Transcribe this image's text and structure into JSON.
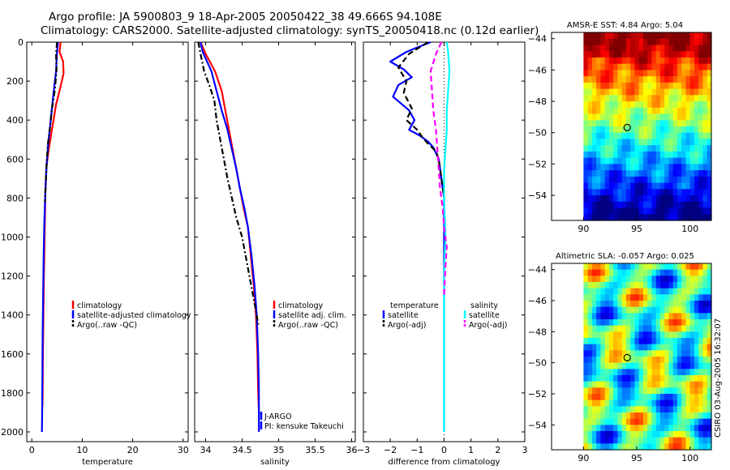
{
  "header": {
    "line1": "Argo profile: JA 5900803_9 18-Apr-2005 20050422_38 49.666S 94.108E",
    "line2": "Climatology: CARS2000. Satellite-adjusted climatology: synTS_20050418.nc (0.12d earlier)"
  },
  "stamp": "CSIRO 03-Aug-2005 16:32:07",
  "colors": {
    "red": "#ff0000",
    "blue": "#0000ff",
    "black": "#000000",
    "cyan": "#00ffff",
    "magenta": "#ff00ff",
    "grey": "#555555"
  },
  "chart_data": [
    {
      "type": "line",
      "id": "temperature",
      "xlabel": "temperature",
      "xlim": [
        -1,
        31
      ],
      "ylim": [
        2050,
        0
      ],
      "y_reversed": true,
      "xticks": [
        0,
        10,
        20,
        30
      ],
      "yticks": [
        0,
        200,
        400,
        600,
        800,
        1000,
        1200,
        1400,
        1600,
        1800,
        2000
      ],
      "series": [
        {
          "name": "climatology",
          "color": "red",
          "style": "solid",
          "x": [
            5.7,
            5.5,
            6.2,
            6.3,
            5.6,
            4.8,
            4.3,
            3.8,
            3.3,
            2.9,
            2.7,
            2.6,
            2.5,
            2.4,
            2.3,
            2.2,
            2.15,
            2.1
          ],
          "y": [
            0,
            50,
            100,
            160,
            240,
            320,
            400,
            480,
            560,
            640,
            760,
            900,
            1050,
            1200,
            1400,
            1600,
            1800,
            1870
          ]
        },
        {
          "name": "satellite-adjusted climatology",
          "color": "blue",
          "style": "solid",
          "x": [
            5.2,
            5.0,
            4.8,
            4.3,
            3.9,
            3.5,
            3.2,
            2.9,
            2.7,
            2.5,
            2.35,
            2.25,
            2.15,
            2.1,
            2.05,
            2.0
          ],
          "y": [
            0,
            50,
            150,
            260,
            360,
            460,
            540,
            640,
            760,
            900,
            1100,
            1300,
            1500,
            1700,
            1900,
            2000
          ]
        },
        {
          "name": "Argo(..raw -QC)",
          "color": "black",
          "style": "dashdot",
          "x": [
            5.0,
            4.8,
            4.9,
            4.6,
            4.0,
            3.6,
            3.2,
            2.9,
            2.7,
            2.6
          ],
          "y": [
            0,
            60,
            140,
            240,
            340,
            440,
            520,
            640,
            760,
            820
          ]
        }
      ],
      "legend": [
        "climatology",
        "satellite-adjusted climatology",
        "Argo(..raw -QC)"
      ]
    },
    {
      "type": "line",
      "id": "salinity",
      "xlabel": "salinity",
      "xlim": [
        33.85,
        36.05
      ],
      "ylim": [
        2050,
        0
      ],
      "y_reversed": true,
      "xticks": [
        34,
        34.5,
        35,
        35.5,
        36
      ],
      "yticks": [
        0,
        200,
        400,
        600,
        800,
        1000,
        1200,
        1400,
        1600,
        1800,
        2000
      ],
      "series": [
        {
          "name": "climatology",
          "color": "red",
          "style": "solid",
          "x": [
            33.93,
            34.0,
            34.13,
            34.22,
            34.27,
            34.32,
            34.37,
            34.42,
            34.47,
            34.52,
            34.58,
            34.62,
            34.66,
            34.69,
            34.71,
            34.72,
            34.73
          ],
          "y": [
            0,
            60,
            150,
            250,
            350,
            450,
            550,
            650,
            750,
            850,
            950,
            1100,
            1250,
            1400,
            1600,
            1800,
            1900
          ]
        },
        {
          "name": "satellite adj. clim.",
          "color": "blue",
          "style": "solid",
          "x": [
            33.93,
            33.96,
            34.02,
            34.08,
            34.15,
            34.22,
            34.3,
            34.36,
            34.42,
            34.47,
            34.53,
            34.58,
            34.63,
            34.67,
            34.7,
            34.72,
            34.73,
            34.73
          ],
          "y": [
            0,
            50,
            100,
            150,
            250,
            350,
            450,
            550,
            650,
            750,
            850,
            950,
            1100,
            1250,
            1400,
            1600,
            1800,
            2000
          ]
        },
        {
          "name": "Argo(..raw -QC)",
          "color": "black",
          "style": "dashdot",
          "x": [
            33.9,
            33.93,
            33.98,
            34.05,
            34.12,
            34.15,
            34.2,
            34.25,
            34.3,
            34.36,
            34.42,
            34.5,
            34.55,
            34.6,
            34.65,
            34.7,
            34.72
          ],
          "y": [
            0,
            60,
            150,
            220,
            300,
            400,
            500,
            600,
            700,
            800,
            900,
            1000,
            1100,
            1200,
            1300,
            1400,
            1450
          ]
        }
      ],
      "legend": [
        "climatology",
        "satellite adj. clim.",
        "Argo(..raw -QC)"
      ],
      "annotation": [
        "J-ARGO",
        "PI: kensuke Takeuchi"
      ]
    },
    {
      "type": "line",
      "id": "difference",
      "xlabel": "difference from climatology",
      "xlim": [
        -3,
        3
      ],
      "ylim": [
        2050,
        0
      ],
      "y_reversed": true,
      "xticks": [
        -3,
        -2,
        -1,
        0,
        1,
        2,
        3
      ],
      "yticks": [
        0,
        200,
        400,
        600,
        800,
        1000,
        1200,
        1400,
        1600,
        1800,
        2000
      ],
      "zero_line": "dotted",
      "series": [
        {
          "name": "temperature satellite",
          "color": "blue",
          "style": "solid",
          "x": [
            -0.5,
            -1.4,
            -2.0,
            -1.5,
            -1.2,
            -1.7,
            -1.9,
            -1.3,
            -1.1,
            -1.3,
            -0.9,
            -0.6,
            -0.4,
            -0.2,
            -0.1,
            0.0,
            0.0,
            0.0,
            0.0,
            0.0
          ],
          "y": [
            0,
            50,
            100,
            140,
            180,
            220,
            280,
            350,
            400,
            450,
            480,
            510,
            540,
            600,
            700,
            800,
            900,
            1000,
            1500,
            2000
          ]
        },
        {
          "name": "temperature Argo(-adj)",
          "color": "black",
          "style": "dashed",
          "x": [
            -0.6,
            -1.3,
            -1.7,
            -1.4,
            -1.5,
            -1.2,
            -1.4,
            -1.0,
            -0.8,
            -0.6,
            -0.3,
            -0.2,
            -0.1,
            0.0
          ],
          "y": [
            0,
            60,
            130,
            200,
            260,
            340,
            400,
            450,
            490,
            520,
            560,
            600,
            700,
            800
          ]
        },
        {
          "name": "salinity satellite",
          "color": "cyan",
          "style": "solid",
          "x": [
            0.1,
            0.15,
            0.2,
            0.15,
            0.1,
            0.1,
            0.05,
            0.0,
            0.0,
            0.05,
            0.0,
            0.0,
            0.0
          ],
          "y": [
            0,
            50,
            150,
            250,
            350,
            450,
            550,
            650,
            800,
            1000,
            1200,
            1600,
            2000
          ]
        },
        {
          "name": "salinity Argo(-adj)",
          "color": "magenta",
          "style": "dashed",
          "x": [
            -0.1,
            -0.3,
            -0.5,
            -0.45,
            -0.4,
            -0.3,
            -0.25,
            -0.2,
            -0.15,
            -0.05,
            0.0,
            0.1,
            0.05,
            0.0
          ],
          "y": [
            0,
            60,
            150,
            250,
            350,
            450,
            550,
            650,
            750,
            850,
            950,
            1050,
            1150,
            1300
          ]
        }
      ],
      "legend_left": {
        "heading": "temperature",
        "items": [
          "satellite",
          "Argo(-adj)"
        ]
      },
      "legend_right": {
        "heading": "salinity",
        "items": [
          "satellite",
          "Argo(-adj)"
        ]
      }
    },
    {
      "type": "heatmap",
      "id": "sst_map",
      "title": "AMSR-E SST: 4.84 Argo: 5.04",
      "xlim": [
        87,
        102
      ],
      "ylim": [
        -55.6,
        -43.6
      ],
      "xticks": [
        90,
        95,
        100
      ],
      "yticks": [
        -44,
        -46,
        -48,
        -50,
        -52,
        -54
      ],
      "data_xlim": [
        90,
        102
      ],
      "marker": {
        "x": 94.1,
        "y": -49.67
      },
      "palette": "jet",
      "value_range": [
        2,
        12
      ],
      "sst_argo": 5.04,
      "sst_satellite": 4.84
    },
    {
      "type": "heatmap",
      "id": "sla_map",
      "title": "Altimetric SLA: -0.057 Argo: 0.025",
      "xlim": [
        87,
        102
      ],
      "ylim": [
        -55.6,
        -43.6
      ],
      "xticks": [
        90,
        95,
        100
      ],
      "yticks": [
        -44,
        -46,
        -48,
        -50,
        -52,
        -54
      ],
      "data_xlim": [
        90,
        102
      ],
      "marker": {
        "x": 94.1,
        "y": -49.67
      },
      "palette": "jet",
      "value_range": [
        -0.3,
        0.3
      ]
    }
  ]
}
